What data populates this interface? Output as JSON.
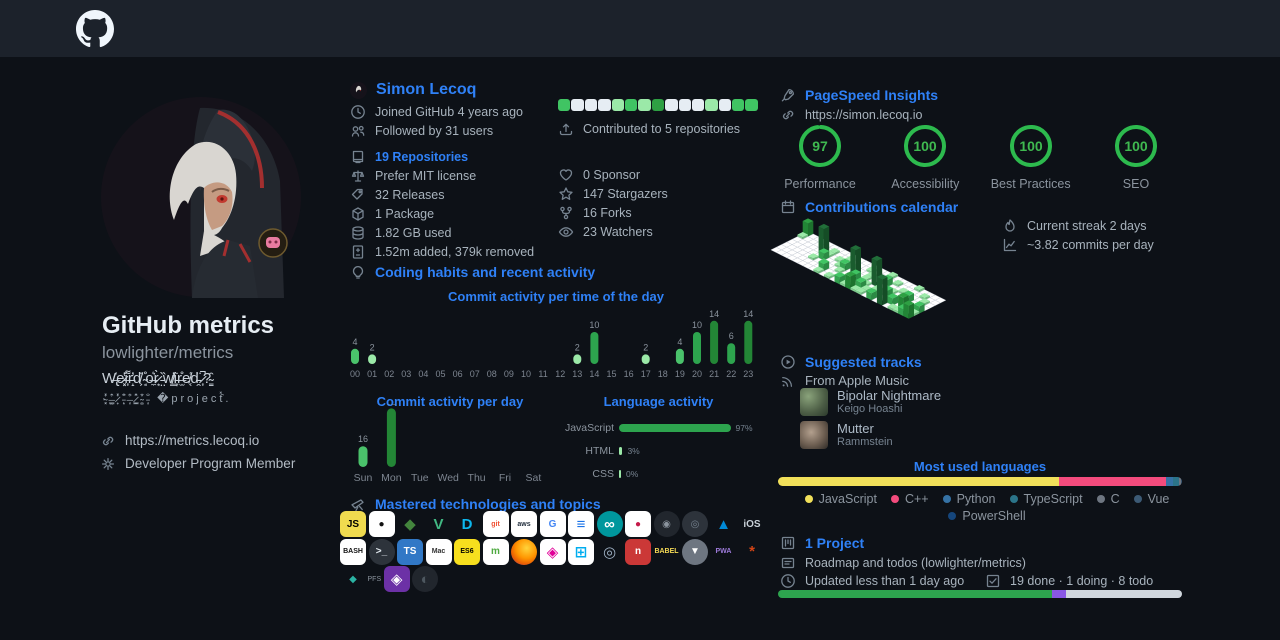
{
  "colors": {
    "accent_blue": "#2f81f7",
    "bg": "#0d1117",
    "topbar_bg": "#1c222b",
    "green_ring": "#2dba4e",
    "contrib_palette": [
      "#e6edf3",
      "#9be9a8",
      "#40c463",
      "#2ea043"
    ]
  },
  "left": {
    "title": "GitHub metrics",
    "subtitle": "lowlighter/metrics",
    "bio_line1": "W̶̢̍e̷͓̔i̶͎͌r̵̝̓d̸͕̑ ̴̘̊o̶̼͛r̷͙̀ ̵̤̏w̸͇̔i̵̞̇r̶̫̊e̸͔͑d̵̯̈ ̷͎̚?̴̳̑",
    "bio_line2": "·̴͓͔̓̽ ̶͚͇̑̓ ̷̟͎̔̽ ̵͕͙̐̑ ̶̦͔̓̈ ̷͇̠̽̑ ̴͎͚̆̓ ̵͔̦̐̈ �project̽̑.",
    "website": "https://metrics.lecoq.io",
    "membership": "Developer Program Member"
  },
  "user": {
    "name": "Simon Lecoq",
    "joined": "Joined GitHub 4 years ago",
    "followed": "Followed by 31 users",
    "repositories": "19 Repositories",
    "license": "Prefer MIT license",
    "releases": "32 Releases",
    "packages": "1 Package",
    "storage": "1.82 GB used",
    "diff": "1.52m added, 379k removed",
    "contrib_squares": [
      2,
      0,
      0,
      0,
      1,
      2,
      1,
      3,
      0,
      0,
      0,
      1,
      0,
      2,
      2
    ],
    "contributed": "Contributed to 5 repositories",
    "sponsors": "0 Sponsor",
    "stargazers": "147 Stargazers",
    "forks": "16 Forks",
    "watchers": "23 Watchers"
  },
  "habits": {
    "title": "Coding habits and recent activity",
    "hour_chart": {
      "type": "bar",
      "title": "Commit activity per time of the day",
      "categories": [
        "00",
        "01",
        "02",
        "03",
        "04",
        "05",
        "06",
        "07",
        "08",
        "09",
        "10",
        "11",
        "12",
        "13",
        "14",
        "15",
        "16",
        "17",
        "18",
        "19",
        "20",
        "21",
        "22",
        "23"
      ],
      "values": [
        4,
        2,
        0,
        0,
        0,
        0,
        0,
        0,
        0,
        0,
        0,
        0,
        0,
        2,
        10,
        0,
        0,
        2,
        0,
        4,
        10,
        14,
        6,
        14
      ]
    },
    "day_chart": {
      "type": "bar",
      "title": "Commit activity per day",
      "categories": [
        "Sun",
        "Mon",
        "Tue",
        "Wed",
        "Thu",
        "Fri",
        "Sat"
      ],
      "values": [
        16,
        52,
        0,
        0,
        0,
        0,
        0
      ]
    },
    "language_activity": {
      "title": "Language activity",
      "rows": [
        {
          "label": "JavaScript",
          "pct": 97
        },
        {
          "label": "HTML",
          "pct": 3
        },
        {
          "label": "CSS",
          "pct": 0
        }
      ]
    }
  },
  "technologies": {
    "title": "Mastered technologies and topics",
    "rows": [
      [
        {
          "name": "javascript",
          "bg": "#f0db4f",
          "fg": "#000000",
          "t": "JS"
        },
        {
          "name": "linux",
          "bg": "#ffffff",
          "fg": "#111111",
          "t": "●"
        },
        {
          "name": "nodejs",
          "bg": "",
          "fg": "#43853d",
          "t": "◆",
          "big": 1
        },
        {
          "name": "vue",
          "bg": "",
          "fg": "#41b883",
          "t": "V",
          "big": 1
        },
        {
          "name": "docker",
          "bg": "",
          "fg": "#0db7ed",
          "t": "D",
          "big": 1
        },
        {
          "name": "git",
          "bg": "#ffffff",
          "fg": "#f05133",
          "t": "git",
          "small": 1
        },
        {
          "name": "aws",
          "bg": "#ffffff",
          "fg": "#232f3e",
          "t": "aws",
          "small": 1
        },
        {
          "name": "google",
          "bg": "#ffffff",
          "fg": "#4285f4",
          "t": "G"
        },
        {
          "name": "database",
          "bg": "#ffffff",
          "fg": "#1a73e8",
          "t": "≡",
          "big": 1
        },
        {
          "name": "arduino",
          "bg": "#00979d",
          "fg": "#ffffff",
          "t": "∞",
          "big": 1,
          "round": 1
        },
        {
          "name": "raspberry-pi",
          "bg": "#ffffff",
          "fg": "#c51a4a",
          "t": "●"
        },
        {
          "name": "github",
          "bg": "#21262d",
          "fg": "#8b949e",
          "t": "◉",
          "round": 1
        },
        {
          "name": "json",
          "bg": "#2d333b",
          "fg": "#768390",
          "t": "◎",
          "round": 1
        },
        {
          "name": "azure",
          "bg": "",
          "fg": "#0089d6",
          "t": "▲",
          "big": 1
        },
        {
          "name": "ios",
          "bg": "",
          "fg": "#c9d1d9",
          "t": "iOS"
        }
      ],
      [
        {
          "name": "bash",
          "bg": "#ffffff",
          "fg": "#111111",
          "t": "BASH",
          "small": 1
        },
        {
          "name": "terminal",
          "bg": "#2d333b",
          "fg": "#e6edf3",
          "t": ">_",
          "round": 1
        },
        {
          "name": "typescript",
          "bg": "#3178c6",
          "fg": "#ffffff",
          "t": "TS"
        },
        {
          "name": "mac",
          "bg": "#ffffff",
          "fg": "#333333",
          "t": "Mac",
          "small": 1
        },
        {
          "name": "es6",
          "bg": "#f7df1e",
          "fg": "#000000",
          "t": "ES6",
          "small": 1
        },
        {
          "name": "mongodb",
          "bg": "#ffffff",
          "fg": "#4faa41",
          "t": "m"
        },
        {
          "name": "firefox",
          "bg": "",
          "fg": "",
          "t": "",
          "ff": 1
        },
        {
          "name": "graphql",
          "bg": "#ffffff",
          "fg": "#e10098",
          "t": "◈",
          "big": 1
        },
        {
          "name": "windows",
          "bg": "#ffffff",
          "fg": "#00adef",
          "t": "⊞",
          "big": 1
        },
        {
          "name": "electron",
          "bg": "",
          "fg": "#a0b3c6",
          "t": "◎",
          "big": 1
        },
        {
          "name": "npm",
          "bg": "#cb3837",
          "fg": "#ffffff",
          "t": "n"
        },
        {
          "name": "babel",
          "bg": "",
          "fg": "#f5da55",
          "t": "BABEL",
          "small": 1
        },
        {
          "name": "vercel",
          "bg": "#6e7681",
          "fg": "#ffffff",
          "t": "▼",
          "round": 1
        },
        {
          "name": "pwa",
          "bg": "",
          "fg": "#9e7bdb",
          "t": "PWA",
          "small": 1
        },
        {
          "name": "rust",
          "bg": "",
          "fg": "#d34516",
          "t": "*",
          "big": 1
        }
      ],
      [
        {
          "name": "gem",
          "bg": "",
          "fg": "#2bb3a3",
          "t": "◆",
          "extra": "PFS"
        },
        {
          "name": "obsidian",
          "bg": "#6c31a6",
          "fg": "#ffffff",
          "t": "◈",
          "big": 1
        },
        {
          "name": "swirl",
          "bg": "#21262d",
          "fg": "#4d575f",
          "t": "◐",
          "big": 1,
          "round": 1
        }
      ]
    ]
  },
  "pagespeed": {
    "title": "PageSpeed Insights",
    "url": "https://simon.lecoq.io",
    "scores": [
      {
        "label": "Performance",
        "value": 97
      },
      {
        "label": "Accessibility",
        "value": 100
      },
      {
        "label": "Best Practices",
        "value": 100
      },
      {
        "label": "SEO",
        "value": 100
      }
    ]
  },
  "calendar": {
    "title": "Contributions calendar",
    "streak": "Current streak 2 days",
    "average": "~3.82 commits per day",
    "grid": [
      "3100000",
      "0000000",
      "0000000",
      "0000000",
      "0000000",
      "0040100",
      "0112000",
      "0000100",
      "0010021",
      "0101000",
      "0002101",
      "0010010",
      "0004002",
      "0100211",
      "0011003",
      "0000121",
      "1004011",
      "0020100",
      "0100012",
      "0001200",
      "0010014",
      "1000120",
      "0002001",
      "0100131",
      "0010012",
      "0000213"
    ]
  },
  "tracks": {
    "title": "Suggested tracks",
    "source": "From Apple Music",
    "items": [
      {
        "title": "Bipolar Nightmare",
        "artist": "Keigo Hoashi"
      },
      {
        "title": "Mutter",
        "artist": "Rammstein"
      }
    ]
  },
  "languages": {
    "title": "Most used languages",
    "items": [
      {
        "name": "JavaScript",
        "color": "#f1e05a",
        "pct": 69.5
      },
      {
        "name": "C++",
        "color": "#f34b7d",
        "pct": 26.5
      },
      {
        "name": "Python",
        "color": "#3572a5",
        "pct": 1.9
      },
      {
        "name": "TypeScript",
        "color": "#2b7489",
        "pct": 1.3
      },
      {
        "name": "C",
        "color": "#6e7681",
        "pct": 0.5
      },
      {
        "name": "Vue",
        "color": "#3c5a75",
        "pct": 0.2
      },
      {
        "name": "PowerShell",
        "color": "#15467c",
        "pct": 0.1
      }
    ]
  },
  "project": {
    "title": "1 Project",
    "name": "Roadmap and todos (lowlighter/metrics)",
    "updated": "Updated less than 1 day ago",
    "tasks": "19 done · 1 doing · 8 todo",
    "progress": [
      {
        "state": "done",
        "color": "#2da44e",
        "pct": 67.8
      },
      {
        "state": "doing",
        "color": "#8957e5",
        "pct": 3.6
      },
      {
        "state": "todo",
        "color": "#d0d7de",
        "pct": 28.6
      }
    ]
  }
}
